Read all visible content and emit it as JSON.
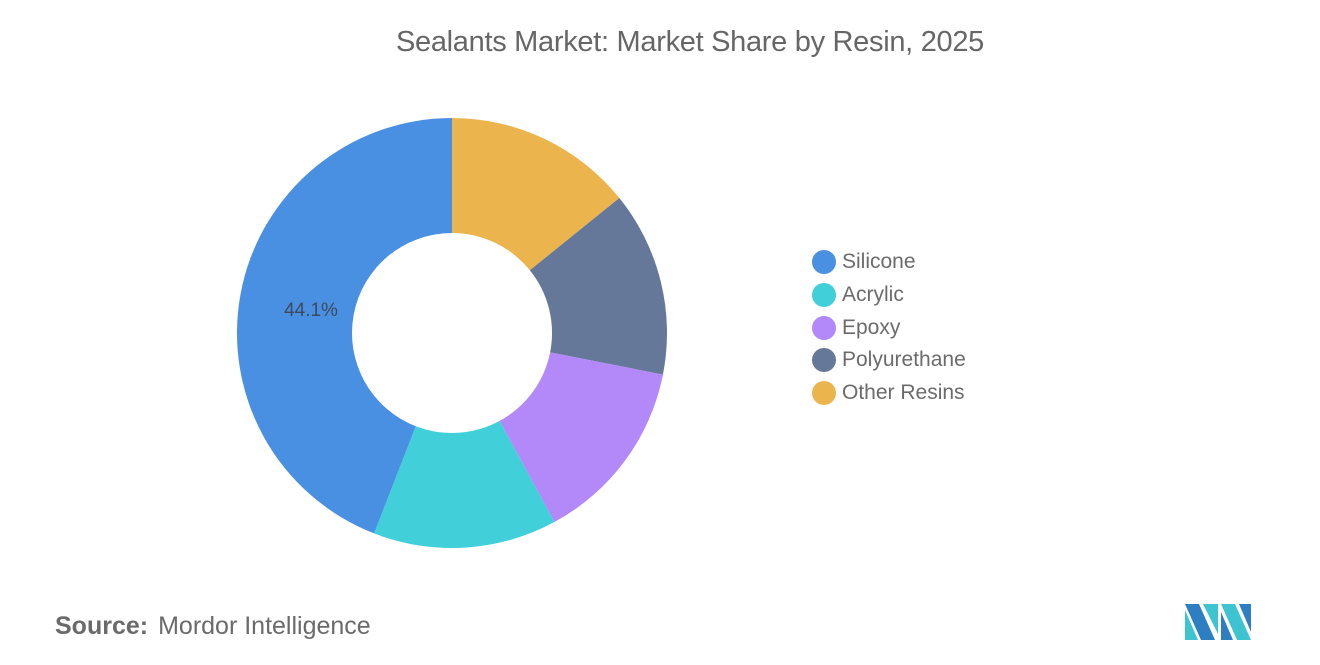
{
  "title": "Sealants Market: Market Share by Resin, 2025",
  "source": {
    "label": "Source:",
    "value": "Mordor Intelligence"
  },
  "logo": {
    "icon": "mordor-intelligence-logo-icon"
  },
  "legend": [
    {
      "label": "Silicone",
      "color": "#4A90E2"
    },
    {
      "label": "Acrylic",
      "color": "#41CFD9"
    },
    {
      "label": "Epoxy",
      "color": "#B388F9"
    },
    {
      "label": "Polyurethane",
      "color": "#657899"
    },
    {
      "label": "Other Resins",
      "color": "#EBB44C"
    }
  ],
  "slice_label": "44.1%",
  "chart_data": {
    "type": "pie",
    "subtype": "donut",
    "title": "Sealants Market: Market Share by Resin, 2025",
    "categories": [
      "Silicone",
      "Acrylic",
      "Epoxy",
      "Polyurethane",
      "Other Resins"
    ],
    "values": [
      44.1,
      13.8,
      14.0,
      13.9,
      14.2
    ],
    "colors": [
      "#4A90E2",
      "#41CFD9",
      "#B388F9",
      "#657899",
      "#EBB44C"
    ],
    "data_labels": [
      {
        "category": "Silicone",
        "text": "44.1%"
      }
    ],
    "legend_position": "right",
    "clockwise_order_from_top": [
      "Other Resins",
      "Polyurethane",
      "Epoxy",
      "Acrylic",
      "Silicone"
    ],
    "source": "Mordor Intelligence"
  }
}
